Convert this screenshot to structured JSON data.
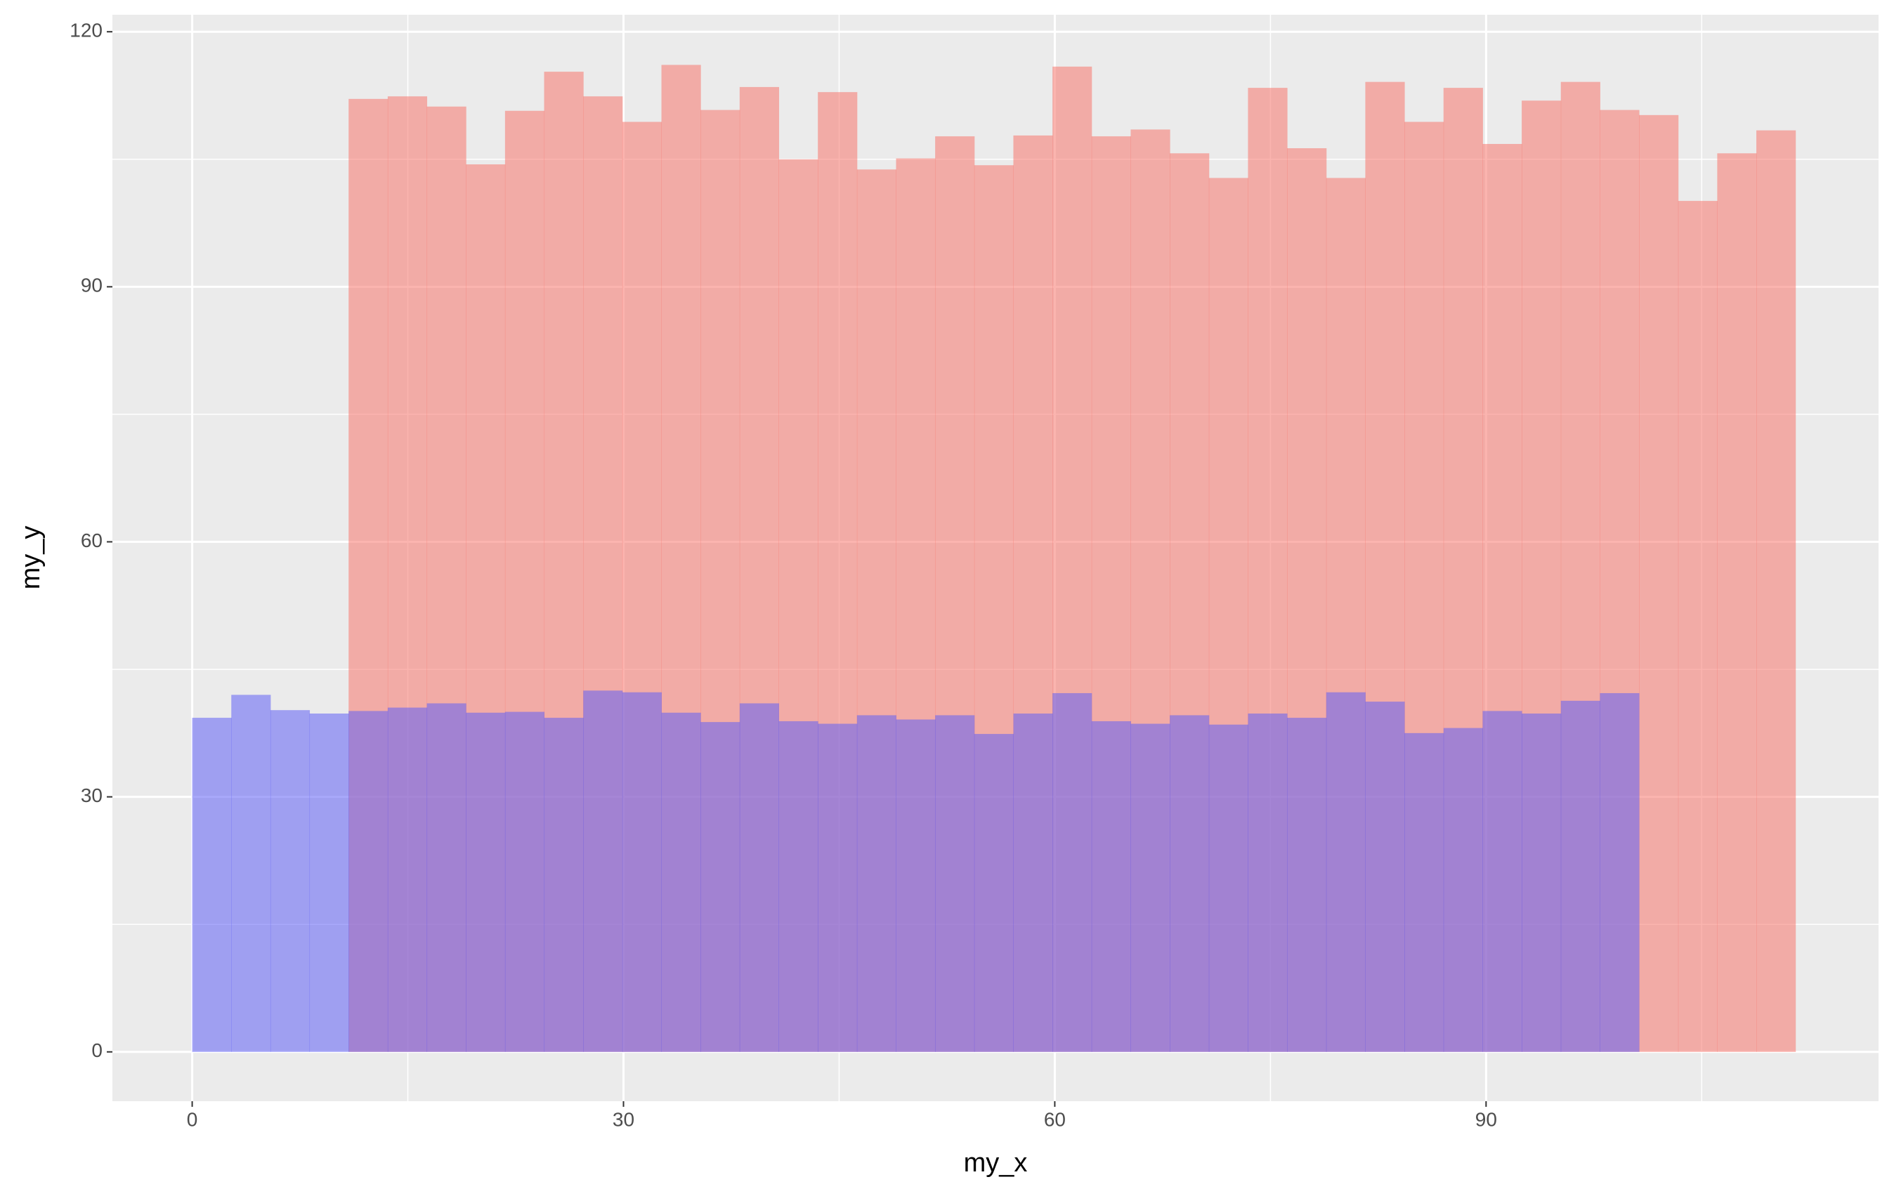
{
  "chart_data": {
    "type": "histogram",
    "x_label": "my_x",
    "y_label": "my_y",
    "xlim": [
      -5.55,
      117.3
    ],
    "ylim": [
      -5.8,
      122
    ],
    "xticks": [
      0,
      30,
      60,
      90
    ],
    "yticks": [
      0,
      30,
      60,
      90,
      120
    ],
    "x_minor_ticks": [
      15,
      45,
      75,
      105
    ],
    "y_minor_ticks": [
      15,
      45,
      75,
      105
    ],
    "grid": true,
    "series": [
      {
        "color": "#f8766d",
        "bins": [
          10.88,
          13.6,
          16.32,
          19.04,
          21.76,
          24.48,
          27.2,
          29.92,
          32.64,
          35.36,
          38.08,
          40.8,
          43.52,
          46.24,
          48.96,
          51.68,
          54.4,
          57.12,
          59.84,
          62.56,
          65.28,
          68,
          70.72,
          73.44,
          76.16,
          78.88,
          81.6,
          84.32,
          87.04,
          89.76,
          92.48,
          95.2,
          97.92,
          100.64,
          103.36,
          106.08,
          108.8,
          111.52
        ],
        "values": [
          112.1,
          112.4,
          111.2,
          104.4,
          110.7,
          115.3,
          112.4,
          109.4,
          116.1,
          110.8,
          113.5,
          105,
          112.9,
          103.8,
          105.1,
          107.7,
          104.3,
          107.8,
          115.9,
          107.7,
          108.5,
          105.7,
          102.8,
          113.4,
          106.3,
          102.8,
          114.1,
          109.4,
          113.4,
          106.8,
          111.9,
          114.1,
          110.8,
          110.2,
          100.1,
          105.7,
          108.4
        ]
      },
      {
        "color": "#6161f5",
        "bins": [
          0,
          2.72,
          5.44,
          8.16,
          10.88,
          13.6,
          16.32,
          19.04,
          21.76,
          24.48,
          27.2,
          29.92,
          32.64,
          35.36,
          38.08,
          40.8,
          43.52,
          46.24,
          48.96,
          51.68,
          54.4,
          57.12,
          59.84,
          62.56,
          65.28,
          68,
          70.72,
          73.44,
          76.16,
          78.88,
          81.6,
          84.32,
          87.04,
          89.76,
          92.48,
          95.2,
          97.92,
          100.64
        ],
        "values": [
          39.3,
          42,
          40.2,
          39.8,
          40.1,
          40.5,
          41,
          39.9,
          40,
          39.3,
          42.5,
          42.3,
          39.9,
          38.8,
          41,
          38.9,
          38.6,
          39.6,
          39.1,
          39.6,
          37.4,
          39.8,
          42.2,
          38.9,
          38.6,
          39.6,
          38.5,
          39.8,
          39.3,
          42.3,
          41.2,
          37.5,
          38.1,
          40.1,
          39.8,
          41.3,
          42.2
        ]
      }
    ]
  }
}
